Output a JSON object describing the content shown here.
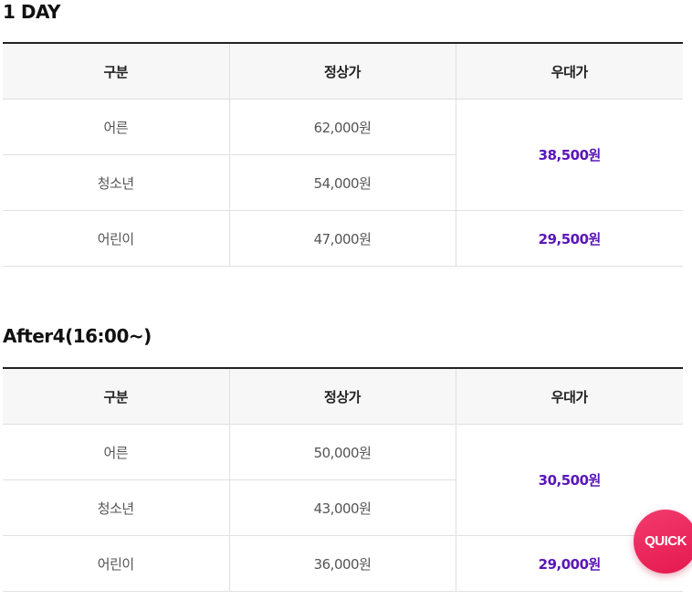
{
  "sections": [
    {
      "title": "1 DAY",
      "headers": [
        "구분",
        "정상가",
        "우대가"
      ],
      "rows": [
        {
          "category": "어른",
          "regular": "62,000원"
        },
        {
          "category": "청소년",
          "regular": "54,000원"
        },
        {
          "category": "어린이",
          "regular": "47,000원"
        }
      ],
      "discounts": [
        "38,500원",
        "29,500원"
      ]
    },
    {
      "title": "After4(16:00~)",
      "headers": [
        "구분",
        "정상가",
        "우대가"
      ],
      "rows": [
        {
          "category": "어른",
          "regular": "50,000원"
        },
        {
          "category": "청소년",
          "regular": "43,000원"
        },
        {
          "category": "어린이",
          "regular": "36,000원"
        }
      ],
      "discounts": [
        "30,500원",
        "29,000원"
      ]
    }
  ],
  "colors": {
    "discount_text": "#5a16b8",
    "quick_button": "#e4184f",
    "table_header_bg": "#f7f7f7"
  },
  "quick_button": {
    "label": "QUICK"
  }
}
